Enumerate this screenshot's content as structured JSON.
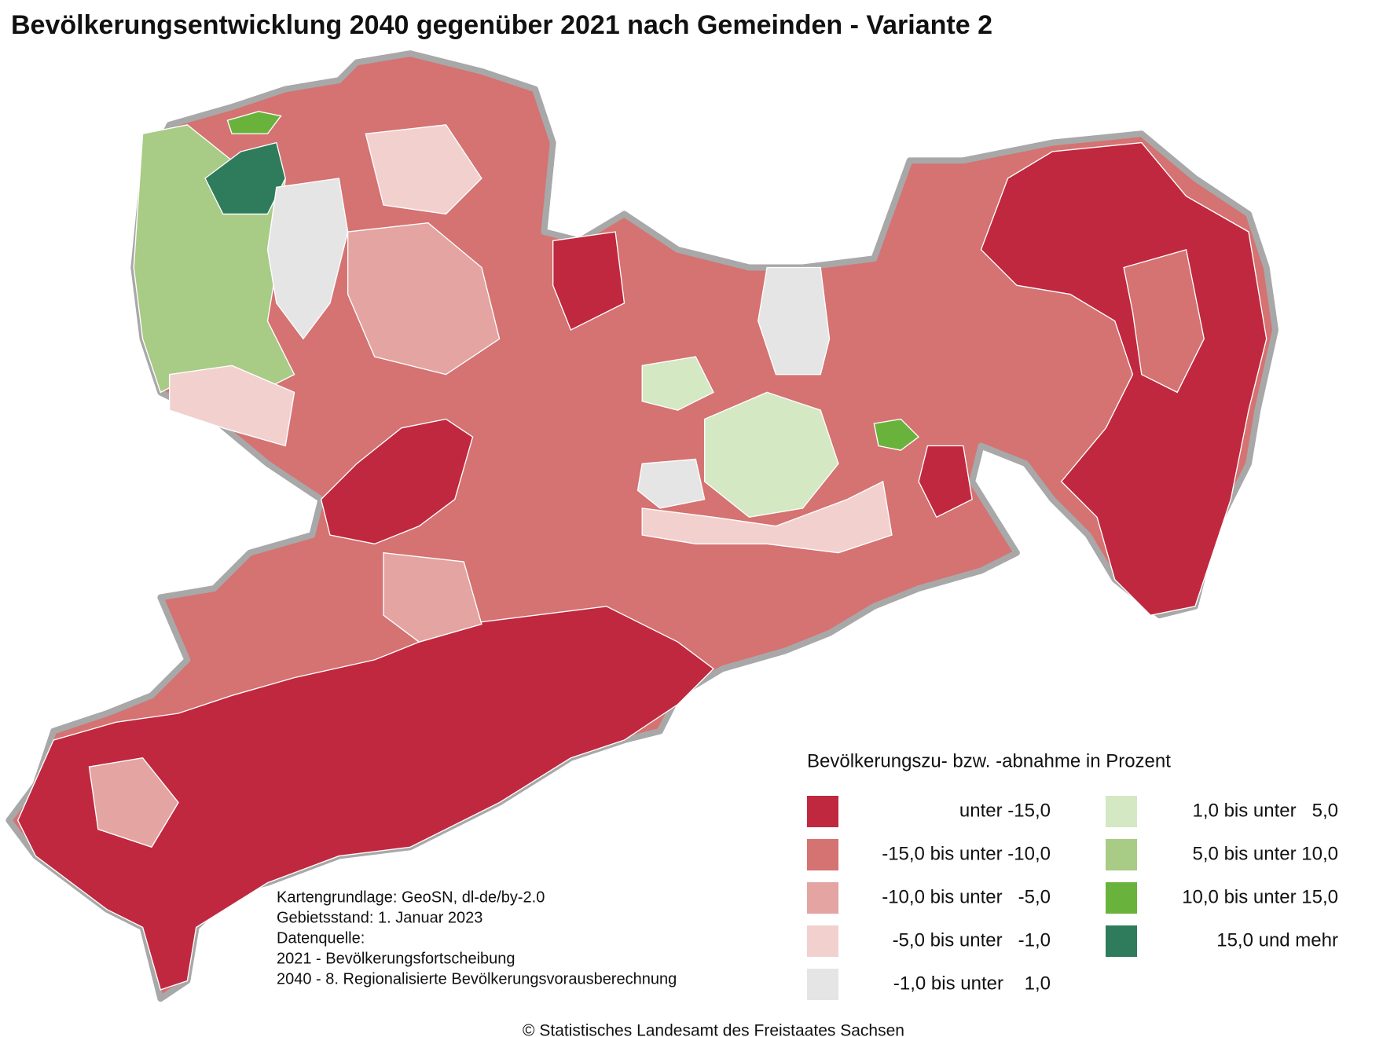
{
  "header": {
    "title": "Bevölkerungsentwicklung 2040 gegenüber 2021 nach Gemeinden - Variante 2"
  },
  "legend": {
    "title": "Bevölkerungszu- bzw. -abnahme in Prozent",
    "items": [
      {
        "label": "unter -15,0",
        "color": "#c0283f"
      },
      {
        "label": "-15,0 bis unter -10,0",
        "color": "#d57272"
      },
      {
        "label": "-10,0 bis unter   -5,0",
        "color": "#e3a4a2"
      },
      {
        "label": "-5,0 bis unter   -1,0",
        "color": "#f2d0ce"
      },
      {
        "label": "-1,0 bis unter    1,0",
        "color": "#e5e5e5"
      },
      {
        "label": "1,0 bis unter   5,0",
        "color": "#d4e8c3"
      },
      {
        "label": "5,0 bis unter 10,0",
        "color": "#a8cb86"
      },
      {
        "label": "10,0 bis unter 15,0",
        "color": "#69b33c"
      },
      {
        "label": "15,0 und mehr",
        "color": "#2e7c5b"
      }
    ]
  },
  "source": {
    "lines": [
      "Kartengrundlage: GeoSN, dl-de/by-2.0",
      "Gebietsstand: 1. Januar 2023",
      "Datenquelle:",
      "2021 - Bevölkerungsfortscheibung",
      "2040 - 8. Regionalisierte Bevölkerungsvorausberechnung"
    ]
  },
  "footer": {
    "copyright": "© Statistisches Landesamt des Freistaates Sachsen"
  }
}
